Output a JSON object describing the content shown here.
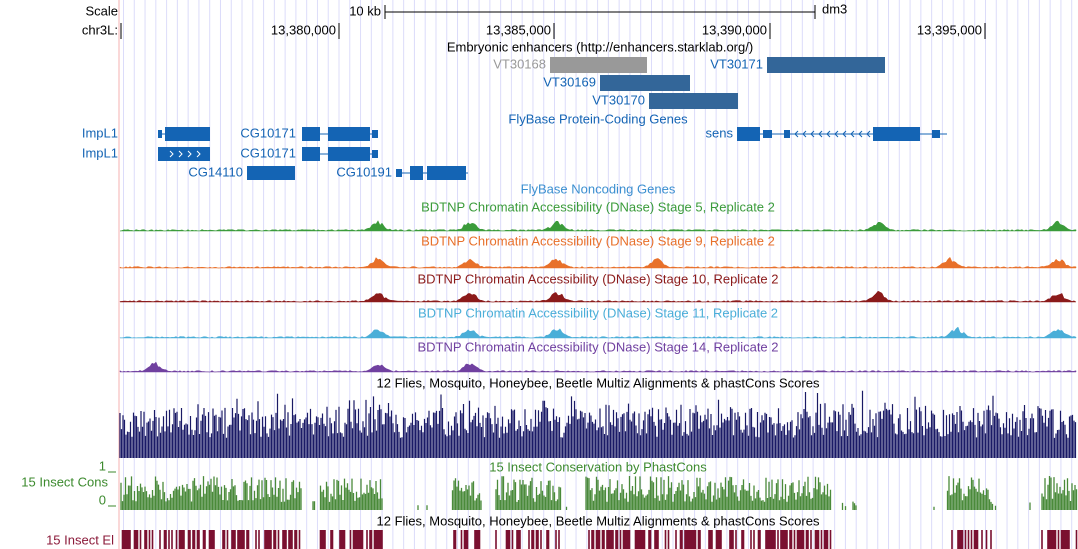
{
  "ruler": {
    "scale_label": "Scale",
    "scale_size": "10 kb",
    "assembly": "dm3",
    "chrom_label": "chr3L:",
    "positions": [
      "13,380,000",
      "13,385,000",
      "13,390,000",
      "13,395,000"
    ]
  },
  "enhancers": {
    "title": "Embryonic enhancers (http://enhancers.starklab.org/)",
    "items": [
      "VT30168",
      "VT30171",
      "VT30169",
      "VT30170"
    ]
  },
  "protein_genes": {
    "title": "FlyBase Protein-Coding Genes",
    "genes": [
      "ImpL1",
      "ImpL1",
      "CG10171",
      "CG10171",
      "CG14110",
      "CG10191",
      "sens"
    ]
  },
  "noncoding_genes": {
    "title": "FlyBase Noncoding Genes"
  },
  "dnase_tracks": [
    "BDTNP Chromatin Accessibility (DNase) Stage 5, Replicate 2",
    "BDTNP Chromatin Accessibility (DNase) Stage 9, Replicate 2",
    "BDTNP Chromatin Accessibility (DNase) Stage 10, Replicate 2",
    "BDTNP Chromatin Accessibility (DNase) Stage 11, Replicate 2",
    "BDTNP Chromatin Accessibility (DNase) Stage 14, Replicate 2"
  ],
  "multiz": {
    "title": "12 Flies, Mosquito, Honeybee, Beetle Multiz Alignments & phastCons Scores"
  },
  "phastcons": {
    "label": "15 Insect Cons",
    "title": "15 Insect Conservation by PhastCons",
    "axis_max": 1,
    "axis_min": 0
  },
  "elements": {
    "label": "15 Insect El",
    "title": "12 Flies, Mosquito, Honeybee, Beetle Multiz Alignments & phastCons Scores"
  }
}
